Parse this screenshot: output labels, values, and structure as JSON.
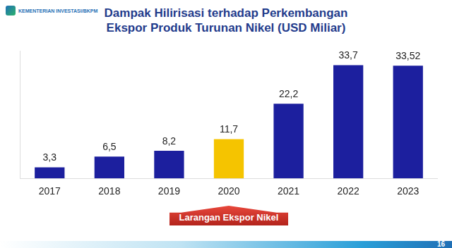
{
  "header": {
    "logo": "KEMENTERIAN INVESTASI/BKPM",
    "page_number": "16"
  },
  "chart_data": {
    "type": "bar",
    "title": "Dampak Hilirisasi terhadap Perkembangan\nEkspor Produk Turunan Nikel (USD Miliar)",
    "categories": [
      "2017",
      "2018",
      "2019",
      "2020",
      "2021",
      "2022",
      "2023"
    ],
    "values": [
      3.3,
      6.5,
      8.2,
      11.7,
      22.2,
      33.7,
      33.52
    ],
    "value_labels": [
      "3,3",
      "6,5",
      "8,2",
      "11,7",
      "22,2",
      "33,7",
      "33,52"
    ],
    "colors": [
      "#1c1f9e",
      "#1c1f9e",
      "#1c1f9e",
      "#f5c400",
      "#1c1f9e",
      "#1c1f9e",
      "#1c1f9e"
    ],
    "ylim": [
      0,
      38
    ],
    "yticks": [
      0
    ],
    "grid": false,
    "data_labels": true,
    "tick_labels": "x",
    "annotations": [
      {
        "text": "Larangan Ekspor Nikel",
        "category": "2020"
      }
    ]
  }
}
